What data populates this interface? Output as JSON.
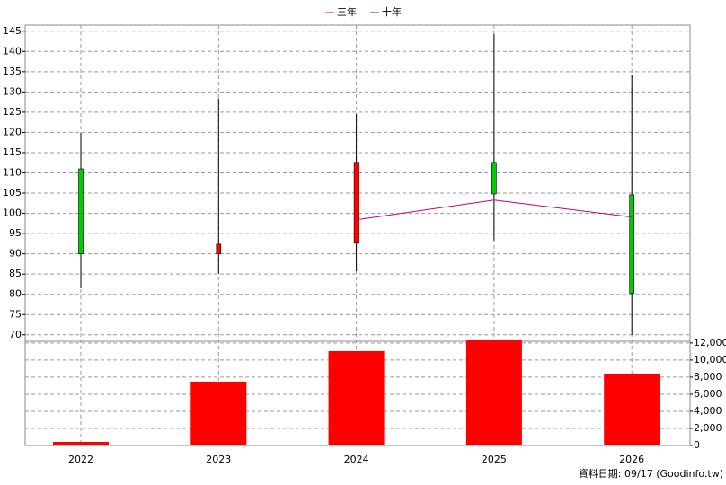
{
  "chart_data": [
    {
      "type": "candlestick",
      "categories": [
        "2022",
        "2023",
        "2024",
        "2025",
        "2026"
      ],
      "open": [
        111,
        90,
        92.6,
        112.6,
        104.6
      ],
      "high": [
        119.9,
        128.4,
        124.6,
        144.3,
        134.3
      ],
      "low": [
        81.5,
        85.1,
        85.7,
        93.3,
        70
      ],
      "close": [
        90,
        92.4,
        112.6,
        104.8,
        80.2
      ],
      "up_color": "#ff0000",
      "down_color": "#00cc00",
      "series": [
        {
          "name": "三年",
          "color": "#cc0066",
          "values": [
            null,
            null,
            98.4,
            103.3,
            99.1
          ]
        },
        {
          "name": "十年",
          "color": "#6600cc",
          "values": [
            null,
            null,
            null,
            null,
            null
          ]
        }
      ],
      "ylim": [
        68.4,
        146.5
      ],
      "yticks": [
        70,
        75,
        80,
        85,
        90,
        95,
        100,
        105,
        110,
        115,
        120,
        125,
        130,
        135,
        140,
        145
      ],
      "grid": true,
      "legend": "top"
    },
    {
      "type": "bar",
      "values": [
        420,
        7470,
        11050,
        12320,
        8420
      ],
      "color": "#ff0000",
      "ylim": [
        0,
        12200
      ],
      "yticks": [
        0,
        {
          "value": 2000,
          "label": "2,000"
        },
        {
          "value": 4000,
          "label": "4,000"
        },
        {
          "value": 6000,
          "label": "6,000"
        },
        {
          "value": 8000,
          "label": "8,000"
        },
        {
          "value": 10000,
          "label": "10,000"
        },
        {
          "value": 12000,
          "label": "12,000"
        }
      ],
      "grid": true,
      "footnote": "資料日期: 09/17  (Goodinfo.tw)"
    }
  ]
}
